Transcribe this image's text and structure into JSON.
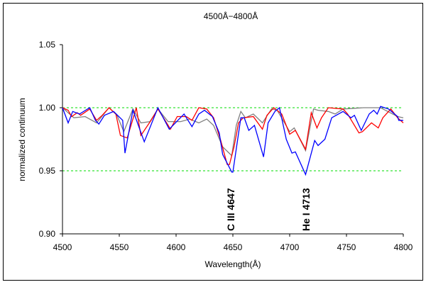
{
  "chart_data": {
    "type": "line",
    "title": "4500Å−4800Å",
    "xlabel": "Wavelength(Å)",
    "ylabel": "normalized continuum",
    "xlim": [
      4500,
      4800
    ],
    "ylim": [
      0.9,
      1.05
    ],
    "xticks": [
      4500,
      4550,
      4600,
      4650,
      4700,
      4750,
      4800
    ],
    "yticks": [
      "0.90",
      "0.95",
      "1.00",
      "1.05"
    ],
    "reference_lines": [
      {
        "y": 1.0,
        "color": "#00dd00",
        "style": "dashed"
      },
      {
        "y": 0.95,
        "color": "#00dd00",
        "style": "dashed"
      }
    ],
    "annotations": [
      {
        "text": "C III  4647",
        "x": 4647
      },
      {
        "text": "He I  4713",
        "x": 4713
      }
    ],
    "grid": false,
    "legend": "none",
    "series": [
      {
        "color": "#808080",
        "points": [
          [
            4500,
            1.0
          ],
          [
            4510,
            0.992
          ],
          [
            4520,
            0.993
          ],
          [
            4530,
            0.988
          ],
          [
            4541,
            1.0
          ],
          [
            4548,
            0.994
          ],
          [
            4554,
            0.981
          ],
          [
            4562,
            0.999
          ],
          [
            4569,
            0.988
          ],
          [
            4577,
            0.989
          ],
          [
            4584,
            0.999
          ],
          [
            4593,
            0.989
          ],
          [
            4604,
            0.989
          ],
          [
            4612,
            0.991
          ],
          [
            4620,
            0.988
          ],
          [
            4627,
            0.991
          ],
          [
            4633,
            0.986
          ],
          [
            4641,
            0.969
          ],
          [
            4649,
            0.962
          ],
          [
            4653,
            0.986
          ],
          [
            4657,
            0.997
          ],
          [
            4661,
            0.992
          ],
          [
            4668,
            0.995
          ],
          [
            4676,
            0.988
          ],
          [
            4684,
            0.999
          ],
          [
            4689,
            0.998
          ],
          [
            4700,
            0.981
          ],
          [
            4704,
            0.984
          ],
          [
            4714,
            0.966
          ],
          [
            4721,
            0.999
          ],
          [
            4725,
            0.998
          ],
          [
            4734,
            0.997
          ],
          [
            4740,
            0.995
          ],
          [
            4747,
            0.999
          ],
          [
            4765,
            1.0
          ],
          [
            4780,
            1.0
          ],
          [
            4795,
            0.993
          ],
          [
            4800,
            0.992
          ]
        ]
      },
      {
        "color": "#ff0000",
        "points": [
          [
            4500,
            1.0
          ],
          [
            4505,
            0.998
          ],
          [
            4508,
            0.993
          ],
          [
            4513,
            0.996
          ],
          [
            4516,
            0.994
          ],
          [
            4524,
            0.999
          ],
          [
            4530,
            0.99
          ],
          [
            4535,
            0.994
          ],
          [
            4541,
            1.0
          ],
          [
            4547,
            0.995
          ],
          [
            4551,
            0.978
          ],
          [
            4557,
            0.976
          ],
          [
            4565,
            1.0
          ],
          [
            4569,
            0.978
          ],
          [
            4578,
            0.99
          ],
          [
            4584,
            0.999
          ],
          [
            4593,
            0.986
          ],
          [
            4595,
            0.983
          ],
          [
            4601,
            0.993
          ],
          [
            4609,
            0.993
          ],
          [
            4614,
            0.99
          ],
          [
            4620,
            1.0
          ],
          [
            4627,
            0.999
          ],
          [
            4633,
            0.992
          ],
          [
            4639,
            0.975
          ],
          [
            4645,
            0.955
          ],
          [
            4647,
            0.955
          ],
          [
            4651,
            0.969
          ],
          [
            4655,
            0.988
          ],
          [
            4659,
            0.992
          ],
          [
            4668,
            0.993
          ],
          [
            4676,
            0.983
          ],
          [
            4680,
            0.994
          ],
          [
            4686,
            1.0
          ],
          [
            4693,
            0.995
          ],
          [
            4700,
            0.979
          ],
          [
            4705,
            0.982
          ],
          [
            4714,
            0.967
          ],
          [
            4719,
            0.996
          ],
          [
            4724,
            0.984
          ],
          [
            4728,
            0.992
          ],
          [
            4734,
            1.0
          ],
          [
            4747,
            0.999
          ],
          [
            4751,
            0.995
          ],
          [
            4761,
            0.98
          ],
          [
            4764,
            0.981
          ],
          [
            4772,
            0.988
          ],
          [
            4778,
            0.984
          ],
          [
            4782,
            0.992
          ],
          [
            4789,
            0.999
          ],
          [
            4795,
            0.992
          ],
          [
            4800,
            0.988
          ]
        ]
      },
      {
        "color": "#0000ff",
        "points": [
          [
            4500,
            1.0
          ],
          [
            4505,
            0.988
          ],
          [
            4509,
            0.997
          ],
          [
            4515,
            0.995
          ],
          [
            4524,
            1.0
          ],
          [
            4529,
            0.99
          ],
          [
            4532,
            0.987
          ],
          [
            4537,
            0.994
          ],
          [
            4545,
            0.997
          ],
          [
            4553,
            0.99
          ],
          [
            4555,
            0.964
          ],
          [
            4562,
            0.998
          ],
          [
            4572,
            0.973
          ],
          [
            4584,
            1.0
          ],
          [
            4594,
            0.983
          ],
          [
            4607,
            0.995
          ],
          [
            4614,
            0.985
          ],
          [
            4620,
            0.995
          ],
          [
            4625,
            0.998
          ],
          [
            4632,
            0.993
          ],
          [
            4638,
            0.98
          ],
          [
            4641,
            0.963
          ],
          [
            4649,
            0.949
          ],
          [
            4650,
            0.949
          ],
          [
            4657,
            0.992
          ],
          [
            4660,
            0.992
          ],
          [
            4664,
            0.982
          ],
          [
            4669,
            0.986
          ],
          [
            4677,
            0.961
          ],
          [
            4681,
            0.988
          ],
          [
            4687,
            0.997
          ],
          [
            4691,
            1.0
          ],
          [
            4697,
            0.975
          ],
          [
            4702,
            0.964
          ],
          [
            4705,
            0.965
          ],
          [
            4714,
            0.947
          ],
          [
            4722,
            0.974
          ],
          [
            4725,
            0.97
          ],
          [
            4731,
            0.975
          ],
          [
            4737,
            0.992
          ],
          [
            4747,
            0.997
          ],
          [
            4754,
            0.992
          ],
          [
            4757,
            0.994
          ],
          [
            4763,
            0.982
          ],
          [
            4770,
            0.995
          ],
          [
            4774,
            0.998
          ],
          [
            4777,
            0.995
          ],
          [
            4780,
            1.001
          ],
          [
            4787,
            0.999
          ],
          [
            4795,
            0.993
          ],
          [
            4796,
            0.99
          ],
          [
            4800,
            0.99
          ]
        ]
      }
    ]
  }
}
